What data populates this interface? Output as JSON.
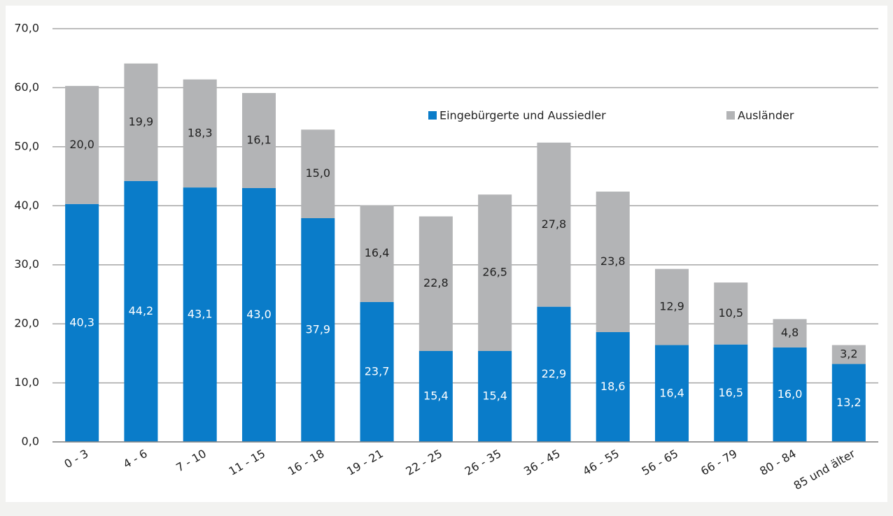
{
  "chart_data": {
    "type": "stacked_bar",
    "categories": [
      "0 - 3",
      "4 - 6",
      "7 - 10",
      "11 - 15",
      "16 - 18",
      "19 - 21",
      "22 - 25",
      "26 - 35",
      "36 - 45",
      "46 - 55",
      "56 - 65",
      "66 - 79",
      "80 - 84",
      "85 und älter"
    ],
    "series": [
      {
        "name": "Eingebürgerte und Aussiedler",
        "color": "#0a7cc9",
        "values": [
          40.3,
          44.2,
          43.1,
          43.0,
          37.9,
          23.7,
          15.4,
          15.4,
          22.9,
          18.6,
          16.4,
          16.5,
          16.0,
          13.2
        ],
        "value_labels": [
          "40,3",
          "44,2",
          "43,1",
          "43,0",
          "37,9",
          "23,7",
          "15,4",
          "15,4",
          "22,9",
          "18,6",
          "16,4",
          "16,5",
          "16,0",
          "13,2"
        ]
      },
      {
        "name": "Ausländer",
        "color": "#b3b4b6",
        "values": [
          20.0,
          19.9,
          18.3,
          16.1,
          15.0,
          16.4,
          22.8,
          26.5,
          27.8,
          23.8,
          12.9,
          10.5,
          4.8,
          3.2
        ],
        "value_labels": [
          "20,0",
          "19,9",
          "18,3",
          "16,1",
          "15,0",
          "16,4",
          "22,8",
          "26,5",
          "27,8",
          "23,8",
          "12,9",
          "10,5",
          "4,8",
          "3,2"
        ]
      }
    ],
    "ylim": [
      0,
      70
    ],
    "yticks": [
      {
        "value": 0,
        "label": "0,0"
      },
      {
        "value": 10,
        "label": "10,0"
      },
      {
        "value": 20,
        "label": "20,0"
      },
      {
        "value": 30,
        "label": "30,0"
      },
      {
        "value": 40,
        "label": "40,0"
      },
      {
        "value": 50,
        "label": "50,0"
      },
      {
        "value": 60,
        "label": "60,0"
      },
      {
        "value": 70,
        "label": "70,0"
      }
    ],
    "grid": true
  }
}
